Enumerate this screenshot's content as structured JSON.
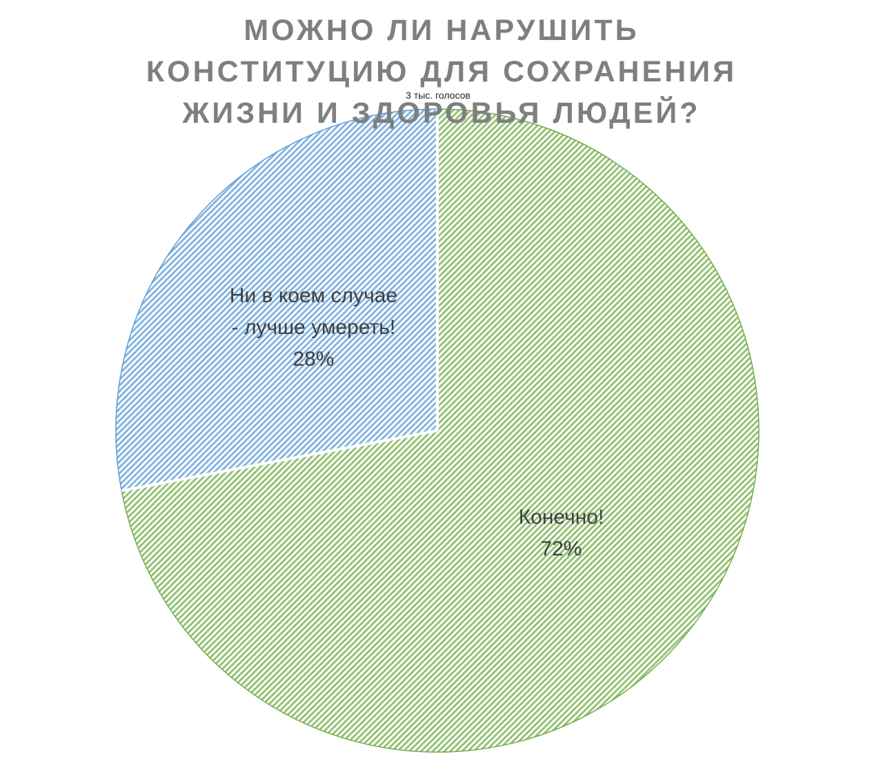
{
  "chart_data": {
    "type": "pie",
    "title": "МОЖНО ЛИ НАРУШИТЬ КОНСТИТУЦИЮ ДЛЯ СОХРАНЕНИЯ ЖИЗНИ И ЗДОРОВЬЯ ЛЮДЕЙ?",
    "subtitle": "3 тыс. голосов",
    "categories": [
      "Конечно!",
      "Ни в коем случае - лучше умереть!"
    ],
    "values": [
      72,
      28
    ],
    "value_labels": [
      "72%",
      "28%"
    ],
    "colors": [
      "#70ad47",
      "#5b9bd5"
    ]
  }
}
